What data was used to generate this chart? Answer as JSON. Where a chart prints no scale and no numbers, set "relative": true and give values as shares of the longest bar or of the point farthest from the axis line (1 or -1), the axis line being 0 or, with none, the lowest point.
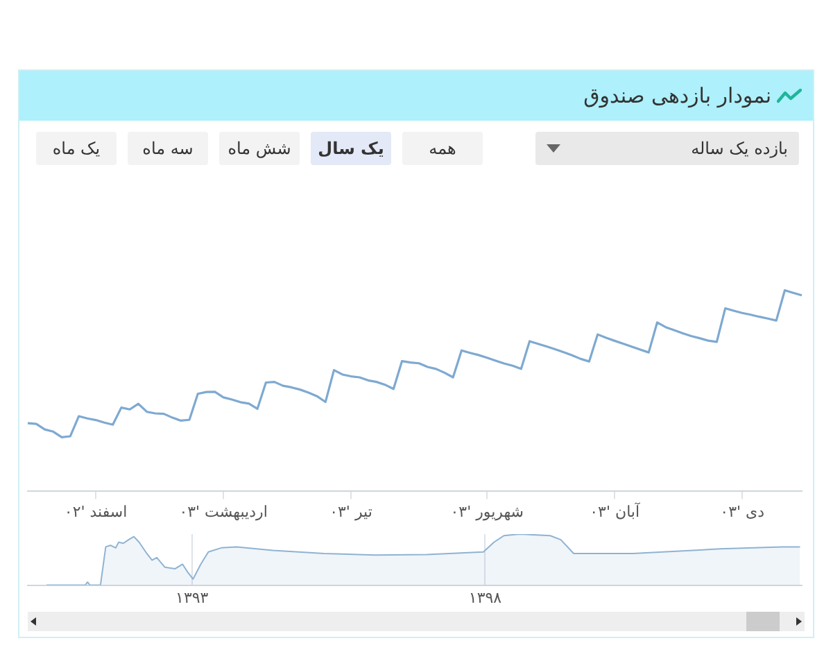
{
  "chart_data": [
    {
      "type": "line",
      "title": "نمودار بازدهی صندوق",
      "relative": true,
      "annotations": [
        "بازده یک ساله",
        "همه",
        "یک سال",
        "شش ماه",
        "سه ماه",
        "یک ماه"
      ],
      "categories": [
        null,
        null,
        null,
        null,
        null,
        null,
        null,
        null,
        "اسفند '۰۲",
        null,
        null,
        null,
        null,
        null,
        null,
        null,
        null,
        null,
        null,
        null,
        null,
        null,
        null,
        "اردیبهشت '۰۳",
        null,
        null,
        null,
        null,
        null,
        null,
        null,
        null,
        null,
        null,
        null,
        null,
        null,
        null,
        "تیر '۰۳",
        null,
        null,
        null,
        null,
        null,
        null,
        null,
        null,
        null,
        null,
        null,
        null,
        null,
        null,
        null,
        "شهریور '۰۳",
        null,
        null,
        null,
        null,
        null,
        null,
        null,
        null,
        null,
        null,
        null,
        null,
        null,
        null,
        "آبان '۰۳",
        null,
        null,
        null,
        null,
        null,
        null,
        null,
        null,
        null,
        null,
        null,
        null,
        null,
        null,
        "دی '۰۳",
        null,
        null,
        null,
        null,
        null,
        null,
        null
      ],
      "tick_labels": "x",
      "series": [
        {
          "color": "#7ea9d1",
          "values": [
            0.337,
            0.334,
            0.306,
            0.295,
            0.267,
            0.272,
            0.372,
            0.361,
            0.353,
            0.34,
            0.33,
            0.415,
            0.406,
            0.434,
            0.394,
            0.386,
            0.384,
            0.365,
            0.35,
            0.354,
            0.484,
            0.493,
            0.494,
            0.466,
            0.455,
            0.442,
            0.435,
            0.409,
            0.54,
            0.543,
            0.524,
            0.516,
            0.505,
            0.49,
            0.472,
            0.443,
            0.602,
            0.58,
            0.571,
            0.566,
            0.551,
            0.543,
            0.529,
            0.508,
            0.647,
            0.64,
            0.636,
            0.618,
            0.608,
            0.589,
            0.566,
            0.7,
            0.688,
            0.677,
            0.664,
            0.649,
            0.635,
            0.624,
            0.608,
            0.746,
            0.733,
            0.72,
            0.706,
            0.691,
            0.676,
            0.658,
            0.645,
            0.78,
            0.763,
            0.748,
            0.734,
            0.719,
            0.704,
            0.69,
            0.84,
            0.816,
            0.801,
            0.786,
            0.772,
            0.761,
            0.749,
            0.743,
            0.91,
            0.898,
            0.887,
            0.878,
            0.868,
            0.859,
            0.849,
            1,
            0.987,
            0.975
          ]
        }
      ]
    },
    {
      "type": "area",
      "relative": true,
      "xlim": [
        1390.2,
        1403.4
      ],
      "xticks": [
        {
          "value": 1393,
          "label": "۱۳۹۳"
        },
        {
          "value": 1398,
          "label": "۱۳۹۸"
        }
      ],
      "grid": "x",
      "series": [
        {
          "color": "#8fb3d3",
          "x": [
            1390.52,
            1391.18,
            1391.22,
            1391.26,
            1391.44,
            1391.53,
            1391.61,
            1391.7,
            1391.75,
            1391.83,
            1391.92,
            1392.01,
            1392.1,
            1392.23,
            1392.32,
            1392.4,
            1392.54,
            1392.71,
            1392.84,
            1392.93,
            1393.02,
            1393.15,
            1393.28,
            1393.5,
            1393.76,
            1394.38,
            1395.25,
            1396.13,
            1397.01,
            1397.97,
            1398.15,
            1398.32,
            1398.59,
            1399.11,
            1399.29,
            1399.51,
            1400.52,
            1402.01,
            1403.06,
            1403.37
          ],
          "values": [
            0,
            0,
            0.06,
            0,
            0,
            0.75,
            0.78,
            0.73,
            0.84,
            0.82,
            0.89,
            0.95,
            0.84,
            0.62,
            0.49,
            0.54,
            0.35,
            0.32,
            0.41,
            0.25,
            0.12,
            0.41,
            0.65,
            0.73,
            0.75,
            0.68,
            0.62,
            0.59,
            0.6,
            0.65,
            0.84,
            0.97,
            1,
            0.97,
            0.89,
            0.62,
            0.62,
            0.71,
            0.75,
            0.75
          ]
        }
      ]
    }
  ]
}
